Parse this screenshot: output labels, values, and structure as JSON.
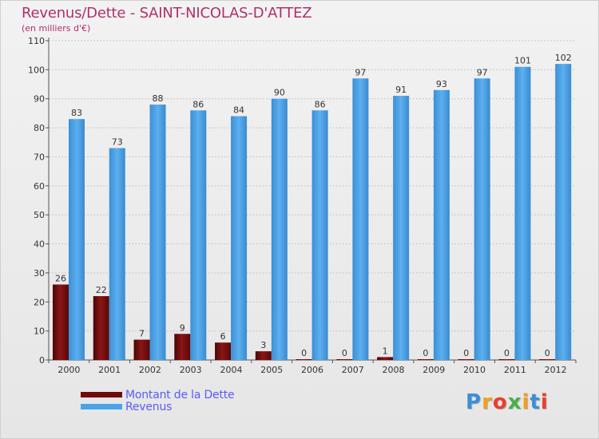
{
  "header": {
    "title": "Revenus/Dette - SAINT-NICOLAS-D'ATTEZ",
    "subtitle": "(en milliers d'€)"
  },
  "legend": {
    "items": [
      {
        "label": "Montant de la Dette",
        "color": "#6e0b0b"
      },
      {
        "label": "Revenus",
        "color": "#4aa3e6"
      }
    ]
  },
  "logo": {
    "letters": [
      {
        "ch": "P",
        "color": "#3a8fd8"
      },
      {
        "ch": "r",
        "color": "#f0a020"
      },
      {
        "ch": "o",
        "color": "#e8402a"
      },
      {
        "ch": "x",
        "color": "#4ab04a"
      },
      {
        "ch": "i",
        "color": "#f0a020"
      },
      {
        "ch": "t",
        "color": "#3a8fd8"
      },
      {
        "ch": "i",
        "color": "#e8402a"
      }
    ]
  },
  "chart_data": {
    "type": "bar",
    "title": "Revenus/Dette - SAINT-NICOLAS-D'ATTEZ",
    "ylabel": "(en milliers d'€)",
    "xlabel": "",
    "ylim": [
      0,
      110
    ],
    "yticks": [
      0,
      10,
      20,
      30,
      40,
      50,
      60,
      70,
      80,
      90,
      100,
      110
    ],
    "grid": true,
    "legend_position": "bottom-left",
    "categories": [
      "2000",
      "2001",
      "2002",
      "2003",
      "2004",
      "2005",
      "2006",
      "2007",
      "2008",
      "2009",
      "2010",
      "2011",
      "2012"
    ],
    "series": [
      {
        "name": "Montant de la Dette",
        "color": "#6e0b0b",
        "values": [
          26,
          22,
          7,
          9,
          6,
          3,
          0,
          0,
          1,
          0,
          0,
          0,
          0
        ]
      },
      {
        "name": "Revenus",
        "color": "#4aa3e6",
        "values": [
          83,
          73,
          88,
          86,
          84,
          90,
          86,
          97,
          91,
          93,
          97,
          101,
          102
        ]
      }
    ]
  }
}
